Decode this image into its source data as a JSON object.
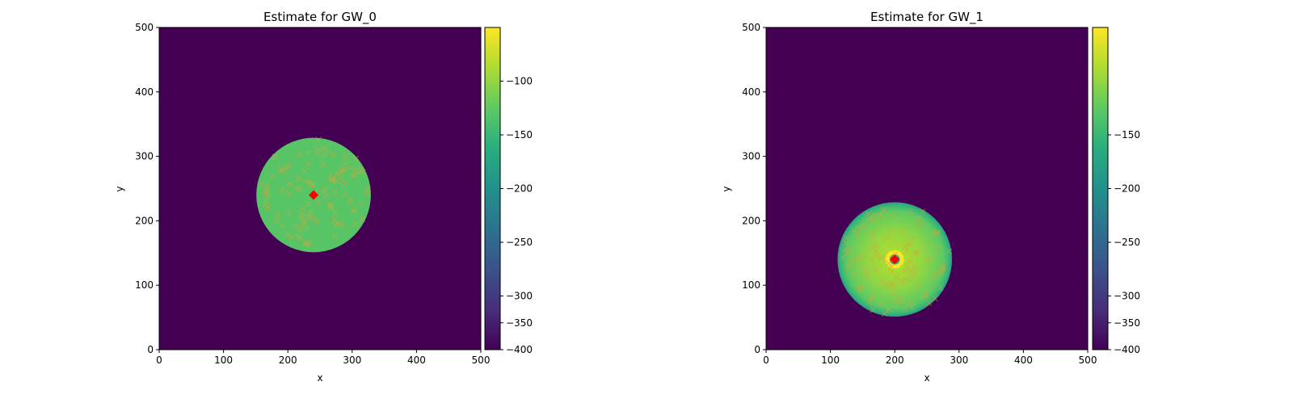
{
  "chart_data": [
    {
      "type": "heatmap",
      "title": "Estimate for GW_0",
      "xlabel": "x",
      "ylabel": "y",
      "xlim": [
        0,
        500
      ],
      "ylim": [
        0,
        500
      ],
      "xticks": [
        0,
        100,
        200,
        300,
        400,
        500
      ],
      "yticks": [
        0,
        100,
        200,
        300,
        400,
        500
      ],
      "xtick_labels": [
        "0",
        "100",
        "200",
        "300",
        "400",
        "500"
      ],
      "ytick_labels": [
        "0",
        "100",
        "200",
        "300",
        "400",
        "500"
      ],
      "background_value": -400,
      "disk": {
        "center": [
          240,
          240
        ],
        "radius": 89,
        "fill_value": -130
      },
      "true_source": {
        "x": 240,
        "y": 240,
        "color": "#ff0000"
      },
      "samples_color": "#d4a63a",
      "colorbar": {
        "breaks": [
          -400,
          -300,
          -250,
          -200,
          -150,
          -100,
          -90
        ],
        "ticks": [
          -100,
          -150,
          -200,
          -250,
          -300,
          -350,
          -400
        ],
        "tick_labels": [
          "−100",
          "−150",
          "−200",
          "−250",
          "−300",
          "−350",
          "−400"
        ]
      }
    },
    {
      "type": "heatmap",
      "title": "Estimate for GW_1",
      "xlabel": "x",
      "ylabel": "y",
      "xlim": [
        0,
        500
      ],
      "ylim": [
        0,
        500
      ],
      "xticks": [
        0,
        100,
        200,
        300,
        400,
        500
      ],
      "yticks": [
        0,
        100,
        200,
        300,
        400,
        500
      ],
      "xtick_labels": [
        "0",
        "100",
        "200",
        "300",
        "400",
        "500"
      ],
      "ytick_labels": [
        "0",
        "100",
        "200",
        "300",
        "400",
        "500"
      ],
      "background_value": -400,
      "disk": {
        "center": [
          200,
          140
        ],
        "radius": 89,
        "fill_value": -120
      },
      "true_source": {
        "x": 200,
        "y": 140,
        "color": "#ff0000"
      },
      "samples_color": "#d4a63a",
      "colorbar": {
        "breaks": [
          -400,
          -300,
          -250,
          -200,
          -150,
          -100,
          -88
        ],
        "ticks": [
          -150,
          -200,
          -250,
          -300,
          -350,
          -400
        ],
        "tick_labels": [
          "−150",
          "−200",
          "−250",
          "−300",
          "−350",
          "−400"
        ]
      }
    }
  ]
}
